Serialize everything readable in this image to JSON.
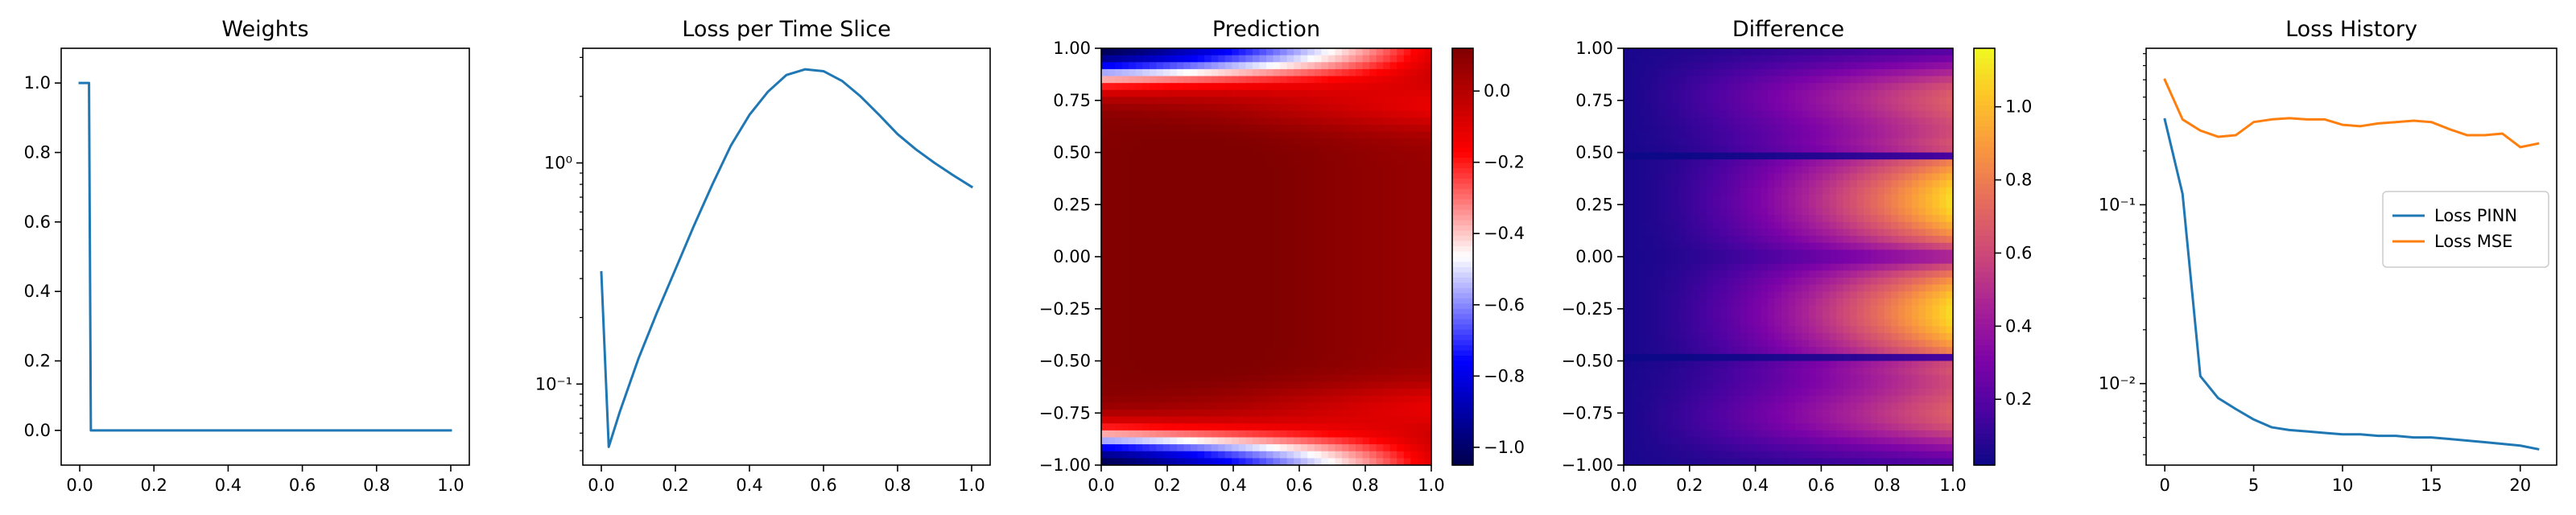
{
  "chart_data": [
    {
      "type": "line",
      "title": "Weights",
      "xlabel": "",
      "ylabel": "",
      "xlim": [
        -0.05,
        1.05
      ],
      "ylim": [
        -0.1,
        1.1
      ],
      "xticks": [
        "0.0",
        "0.2",
        "0.4",
        "0.6",
        "0.8",
        "1.0"
      ],
      "xtick_values": [
        0,
        0.2,
        0.4,
        0.6,
        0.8,
        1.0
      ],
      "yticks": [
        "0.0",
        "0.2",
        "0.4",
        "0.6",
        "0.8",
        "1.0"
      ],
      "ytick_values": [
        0,
        0.2,
        0.4,
        0.6,
        0.8,
        1.0
      ],
      "series": [
        {
          "color": "#1f77b4",
          "x": [
            0,
            0.025,
            0.03,
            1.0
          ],
          "y": [
            1.0,
            1.0,
            0.0,
            0.0
          ]
        }
      ]
    },
    {
      "type": "line",
      "title": "Loss per Time Slice",
      "xlabel": "",
      "ylabel": "",
      "yscale": "log",
      "xlim": [
        -0.05,
        1.05
      ],
      "ylim": [
        0.043,
        3.3
      ],
      "xticks": [
        "0.0",
        "0.2",
        "0.4",
        "0.6",
        "0.8",
        "1.0"
      ],
      "xtick_values": [
        0,
        0.2,
        0.4,
        0.6,
        0.8,
        1.0
      ],
      "yticks": [
        "10⁻¹",
        "10⁰"
      ],
      "ytick_values": [
        0.1,
        1.0
      ],
      "series": [
        {
          "color": "#1f77b4",
          "x": [
            0.0,
            0.02,
            0.05,
            0.1,
            0.15,
            0.2,
            0.25,
            0.3,
            0.35,
            0.4,
            0.45,
            0.5,
            0.55,
            0.6,
            0.65,
            0.7,
            0.75,
            0.8,
            0.85,
            0.9,
            0.95,
            1.0
          ],
          "y": [
            0.32,
            0.052,
            0.075,
            0.13,
            0.21,
            0.33,
            0.52,
            0.8,
            1.2,
            1.65,
            2.1,
            2.5,
            2.65,
            2.6,
            2.35,
            2.0,
            1.65,
            1.35,
            1.15,
            1.0,
            0.88,
            0.78
          ]
        }
      ]
    },
    {
      "type": "heatmap",
      "title": "Prediction",
      "xlabel": "",
      "ylabel": "",
      "xlim": [
        0,
        1
      ],
      "ylim": [
        -1,
        1
      ],
      "colormap": "seismic",
      "clim": [
        -1.05,
        0.12
      ],
      "xticks": [
        "0.0",
        "0.2",
        "0.4",
        "0.6",
        "0.8",
        "1.0"
      ],
      "xtick_values": [
        0,
        0.2,
        0.4,
        0.6,
        0.8,
        1.0
      ],
      "yticks": [
        "−1.00",
        "−0.75",
        "−0.50",
        "−0.25",
        "0.00",
        "0.25",
        "0.50",
        "0.75",
        "1.00"
      ],
      "ytick_values": [
        -1,
        -0.75,
        -0.5,
        -0.25,
        0,
        0.25,
        0.5,
        0.75,
        1
      ],
      "colorbar_ticks": [
        "−1.0",
        "−0.8",
        "−0.6",
        "−0.4",
        "−0.2",
        "0.0"
      ],
      "colorbar_tick_values": [
        -1.0,
        -0.8,
        -0.6,
        -0.4,
        -0.2,
        0.0
      ]
    },
    {
      "type": "heatmap",
      "title": "Difference",
      "xlabel": "",
      "ylabel": "",
      "xlim": [
        0,
        1
      ],
      "ylim": [
        -1,
        1
      ],
      "colormap": "plasma",
      "clim": [
        0.02,
        1.16
      ],
      "xticks": [
        "0.0",
        "0.2",
        "0.4",
        "0.6",
        "0.8",
        "1.0"
      ],
      "xtick_values": [
        0,
        0.2,
        0.4,
        0.6,
        0.8,
        1.0
      ],
      "yticks": [
        "−1.00",
        "−0.75",
        "−0.50",
        "−0.25",
        "0.00",
        "0.25",
        "0.50",
        "0.75",
        "1.00"
      ],
      "ytick_values": [
        -1,
        -0.75,
        -0.5,
        -0.25,
        0,
        0.25,
        0.5,
        0.75,
        1
      ],
      "colorbar_ticks": [
        "0.2",
        "0.4",
        "0.6",
        "0.8",
        "1.0"
      ],
      "colorbar_tick_values": [
        0.2,
        0.4,
        0.6,
        0.8,
        1.0
      ]
    },
    {
      "type": "line",
      "title": "Loss History",
      "xlabel": "",
      "ylabel": "",
      "yscale": "log",
      "xlim": [
        -1.05,
        22.05
      ],
      "ylim": [
        0.0035,
        0.75
      ],
      "xticks": [
        "0",
        "5",
        "10",
        "15",
        "20"
      ],
      "xtick_values": [
        0,
        5,
        10,
        15,
        20
      ],
      "yticks": [
        "10⁻²",
        "10⁻¹"
      ],
      "ytick_values": [
        0.01,
        0.1
      ],
      "legend": "center-right",
      "series": [
        {
          "name": "Loss PINN",
          "color": "#1f77b4",
          "x": [
            0,
            1,
            2,
            3,
            4,
            5,
            6,
            7,
            8,
            9,
            10,
            11,
            12,
            13,
            14,
            15,
            16,
            17,
            18,
            19,
            20,
            21
          ],
          "y": [
            0.3,
            0.115,
            0.011,
            0.0083,
            0.0072,
            0.0063,
            0.0057,
            0.0055,
            0.0054,
            0.0053,
            0.0052,
            0.0052,
            0.0051,
            0.0051,
            0.005,
            0.005,
            0.0049,
            0.0048,
            0.0047,
            0.0046,
            0.0045,
            0.0043
          ]
        },
        {
          "name": "Loss MSE",
          "color": "#ff7f0e",
          "x": [
            0,
            1,
            2,
            3,
            4,
            5,
            6,
            7,
            8,
            9,
            10,
            11,
            12,
            13,
            14,
            15,
            16,
            17,
            18,
            19,
            20,
            21
          ],
          "y": [
            0.5,
            0.3,
            0.26,
            0.24,
            0.245,
            0.29,
            0.3,
            0.305,
            0.3,
            0.3,
            0.28,
            0.275,
            0.285,
            0.29,
            0.295,
            0.29,
            0.265,
            0.245,
            0.245,
            0.25,
            0.21,
            0.22
          ]
        }
      ]
    }
  ]
}
